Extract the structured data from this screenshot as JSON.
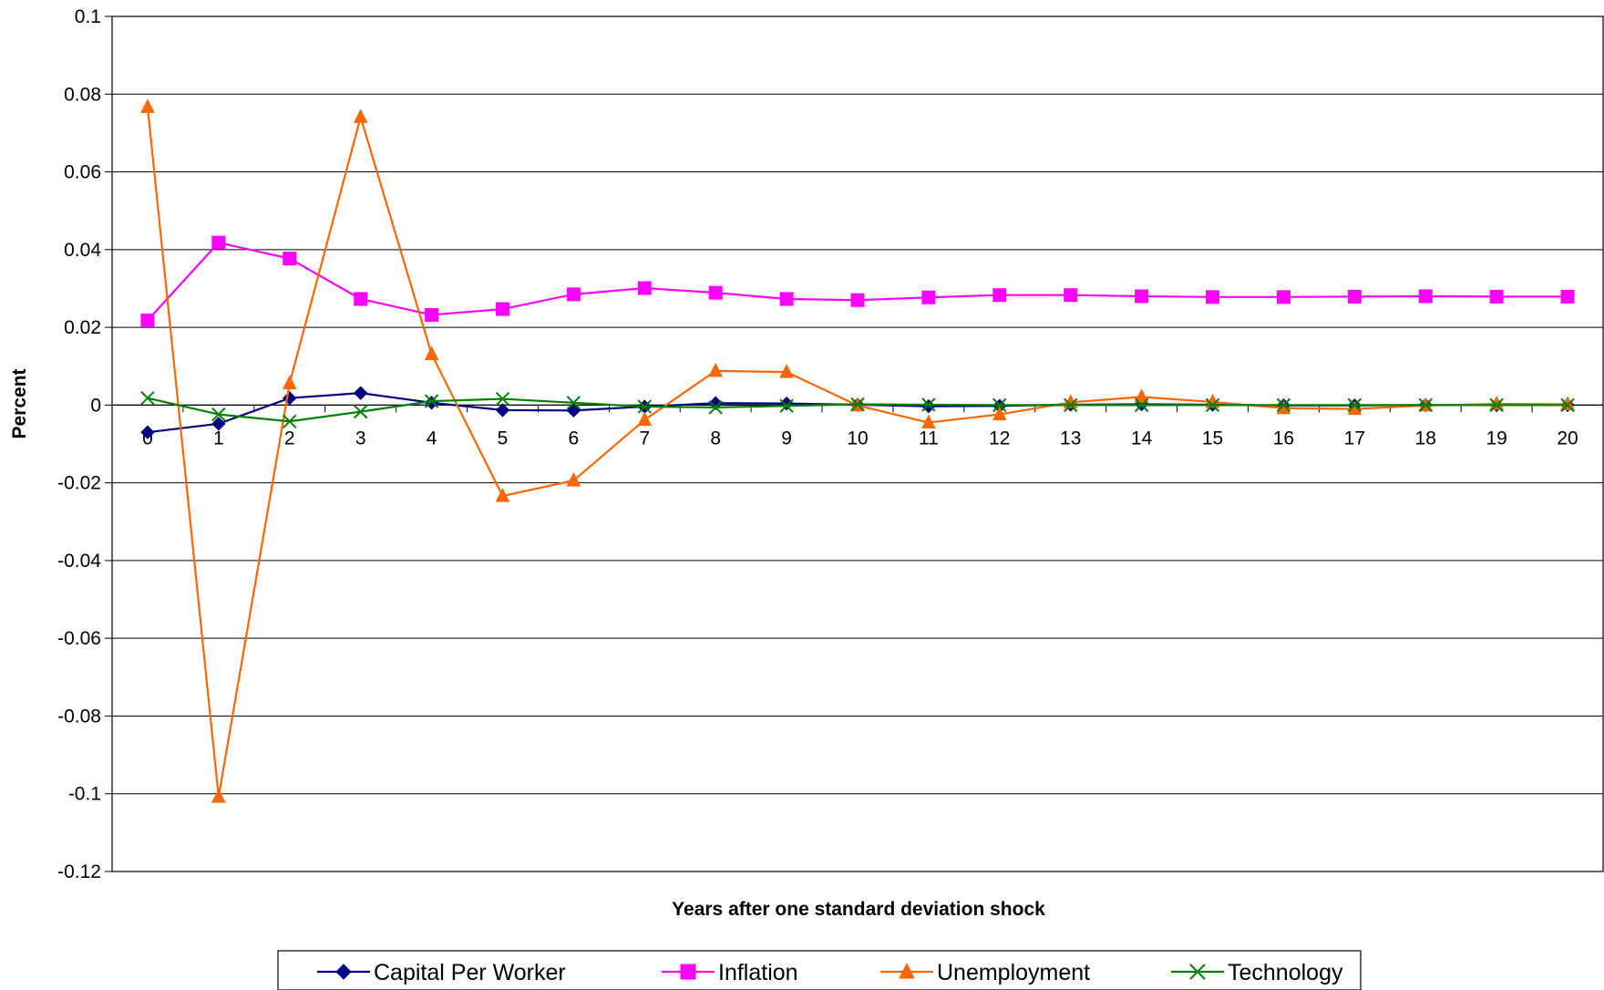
{
  "chart_data": {
    "type": "line",
    "title": "",
    "xlabel": "Years after one standard deviation shock",
    "ylabel": "Percent",
    "x": [
      0,
      1,
      2,
      3,
      4,
      5,
      6,
      7,
      8,
      9,
      10,
      11,
      12,
      13,
      14,
      15,
      16,
      17,
      18,
      19,
      20
    ],
    "ylim": [
      -0.12,
      0.1
    ],
    "yticks": [
      0.1,
      0.08,
      0.06,
      0.04,
      0.02,
      0,
      -0.02,
      -0.04,
      -0.06,
      -0.08,
      -0.1,
      -0.12
    ],
    "ytick_labels": [
      "0.1",
      "0.08",
      "0.06",
      "0.04",
      "0.02",
      "0",
      "-0.02",
      "-0.04",
      "-0.06",
      "-0.08",
      "-0.1",
      "-0.12"
    ],
    "grid": true,
    "legend_position": "bottom",
    "series": [
      {
        "name": "Capital Per Worker",
        "color": "#000080",
        "marker": "diamond",
        "values": [
          -0.007,
          -0.0048,
          0.0018,
          0.0031,
          0.0006,
          -0.0013,
          -0.0014,
          -0.0004,
          0.0005,
          0.0004,
          0.0001,
          -0.0003,
          -0.0002,
          0.0001,
          0.0002,
          0.0001,
          -0.0001,
          -0.0001,
          0.0,
          0.0,
          0.0
        ]
      },
      {
        "name": "Inflation",
        "color": "#FF00FF",
        "marker": "square",
        "values": [
          0.0218,
          0.0418,
          0.0377,
          0.0273,
          0.0232,
          0.0247,
          0.0285,
          0.0301,
          0.0289,
          0.0273,
          0.027,
          0.0277,
          0.0283,
          0.0283,
          0.028,
          0.0278,
          0.0278,
          0.0279,
          0.028,
          0.0279,
          0.0279
        ]
      },
      {
        "name": "Unemployment",
        "color": "#FF6600",
        "marker": "triangle",
        "values": [
          0.0767,
          -0.1008,
          0.0056,
          0.0741,
          0.0131,
          -0.0234,
          -0.0194,
          -0.0038,
          0.0088,
          0.0085,
          -0.0001,
          -0.0045,
          -0.0024,
          0.0007,
          0.0021,
          0.0008,
          -0.0008,
          -0.001,
          -0.0001,
          0.0003,
          0.0002
        ]
      },
      {
        "name": "Technology",
        "color": "#008000",
        "marker": "x",
        "values": [
          0.0018,
          -0.0024,
          -0.0042,
          -0.0017,
          0.001,
          0.0016,
          0.0006,
          -0.0004,
          -0.0006,
          -0.0002,
          0.0002,
          0.0001,
          0.0,
          0.0,
          0.0,
          0.0,
          0.0,
          0.0,
          0.0,
          0.0,
          0.0
        ]
      }
    ]
  }
}
